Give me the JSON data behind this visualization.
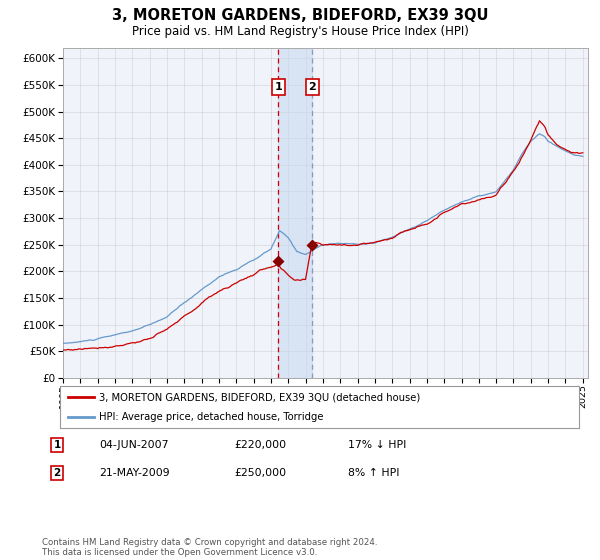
{
  "title": "3, MORETON GARDENS, BIDEFORD, EX39 3QU",
  "subtitle": "Price paid vs. HM Land Registry's House Price Index (HPI)",
  "legend_line1": "3, MORETON GARDENS, BIDEFORD, EX39 3QU (detached house)",
  "legend_line2": "HPI: Average price, detached house, Torridge",
  "annotation_text": "Contains HM Land Registry data © Crown copyright and database right 2024.\nThis data is licensed under the Open Government Licence v3.0.",
  "sale1_date": "04-JUN-2007",
  "sale1_price": "£220,000",
  "sale1_label": "1",
  "sale1_hpi_text": "17% ↓ HPI",
  "sale2_date": "21-MAY-2009",
  "sale2_price": "£250,000",
  "sale2_label": "2",
  "sale2_hpi_text": "8% ↑ HPI",
  "hpi_color": "#6699cc",
  "price_color": "#cc0000",
  "marker_color": "#880000",
  "vline1_color": "#cc0000",
  "vline2_color": "#8899bb",
  "background_color": "#f0f4fa",
  "grid_color": "#cccccc",
  "ylim": [
    0,
    620000
  ],
  "yticks": [
    0,
    50000,
    100000,
    150000,
    200000,
    250000,
    300000,
    350000,
    400000,
    450000,
    500000,
    550000,
    600000
  ],
  "sale1_year": 2007.42,
  "sale2_year": 2009.38,
  "xmin": 1995,
  "xmax": 2025.3
}
